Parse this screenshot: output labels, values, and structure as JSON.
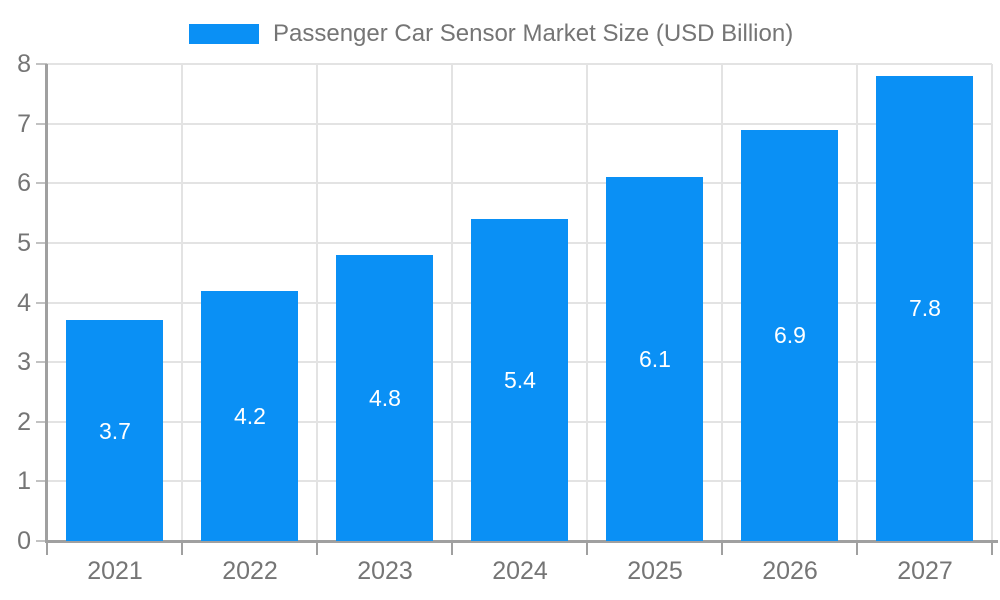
{
  "legend": {
    "label": "Passenger Car Sensor Market Size (USD Billion)"
  },
  "colors": {
    "bar": "#0A90F5",
    "grid_line": "#E3E3E3",
    "axis_line": "#A0A0A0",
    "tick_x": "#A0A0A0",
    "tick_y": "#C2C2C2",
    "axis_text": "#757575",
    "bar_label_text": "#FFFFFF",
    "background": "#FFFFFF"
  },
  "chart_data": {
    "type": "bar",
    "title": "Passenger Car Sensor Market Size (USD Billion)",
    "categories": [
      "2021",
      "2022",
      "2023",
      "2024",
      "2025",
      "2026",
      "2027"
    ],
    "values": [
      3.7,
      4.2,
      4.8,
      5.4,
      6.1,
      6.9,
      7.8
    ],
    "series": [
      {
        "name": "Passenger Car Sensor Market Size (USD Billion)",
        "values": [
          3.7,
          4.2,
          4.8,
          5.4,
          6.1,
          6.9,
          7.8
        ]
      }
    ],
    "bar_labels": [
      "3.7",
      "4.2",
      "4.8",
      "5.4",
      "6.1",
      "6.9",
      "7.8"
    ],
    "xlabel": "",
    "ylabel": "",
    "ylim": [
      0,
      8
    ],
    "yticks": [
      0,
      1,
      2,
      3,
      4,
      5,
      6,
      7,
      8
    ],
    "grid": true,
    "legend_position": "top-center",
    "bar_label_position": "inside-center"
  }
}
